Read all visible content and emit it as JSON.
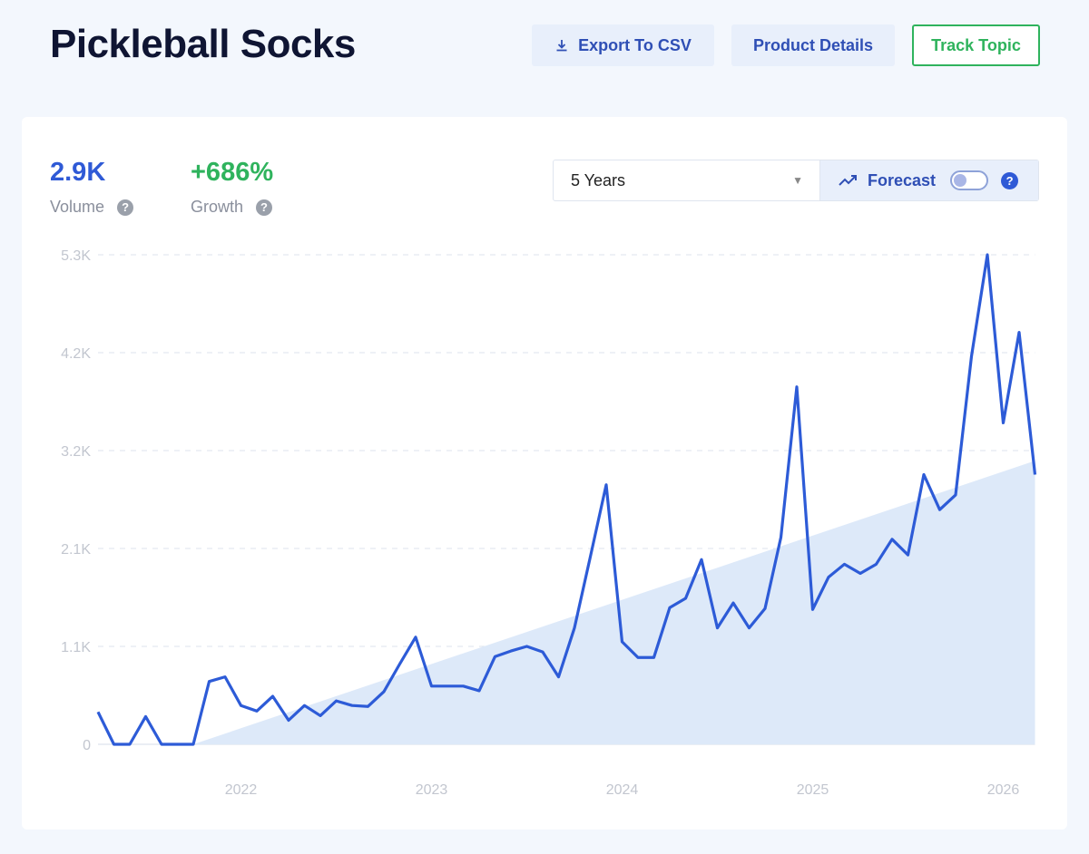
{
  "header": {
    "title": "Pickleball Socks",
    "export_label": "Export To CSV",
    "details_label": "Product Details",
    "track_label": "Track Topic"
  },
  "metrics": {
    "volume_value": "2.9K",
    "volume_label": "Volume",
    "growth_value": "+686%",
    "growth_label": "Growth"
  },
  "controls": {
    "range_selected": "5 Years",
    "forecast_label": "Forecast",
    "forecast_enabled": false
  },
  "colors": {
    "accent": "#2f5ad6",
    "growth": "#2fb35d",
    "line": "#2d5bd7",
    "trend_fill": "#dde9f9"
  },
  "chart_data": {
    "type": "line",
    "x_start": "2021-04",
    "x_end": "2026-03",
    "x_tick_labels": [
      "2022",
      "2023",
      "2024",
      "2025",
      "2026"
    ],
    "y_tick_labels": [
      "0",
      "1.1K",
      "2.1K",
      "3.2K",
      "4.2K",
      "5.3K"
    ],
    "ylim": [
      0,
      5300
    ],
    "grid": true,
    "series": [
      {
        "values": [
          350,
          0,
          0,
          300,
          0,
          0,
          0,
          680,
          730,
          420,
          360,
          520,
          260,
          420,
          310,
          470,
          420,
          410,
          570,
          870,
          1160,
          630,
          630,
          630,
          580,
          950,
          1010,
          1060,
          1000,
          730,
          1260,
          2030,
          2810,
          1110,
          940,
          940,
          1480,
          1580,
          2000,
          1260,
          1530,
          1260,
          1470,
          2240,
          3870,
          1460,
          1810,
          1950,
          1850,
          1950,
          2220,
          2050,
          2920,
          2540,
          2700,
          4200,
          5300,
          3480,
          4460,
          2920
        ]
      }
    ],
    "trend": {
      "start": "2021-10",
      "start_value": 0,
      "end": "2026-03",
      "end_value": 3070
    }
  }
}
